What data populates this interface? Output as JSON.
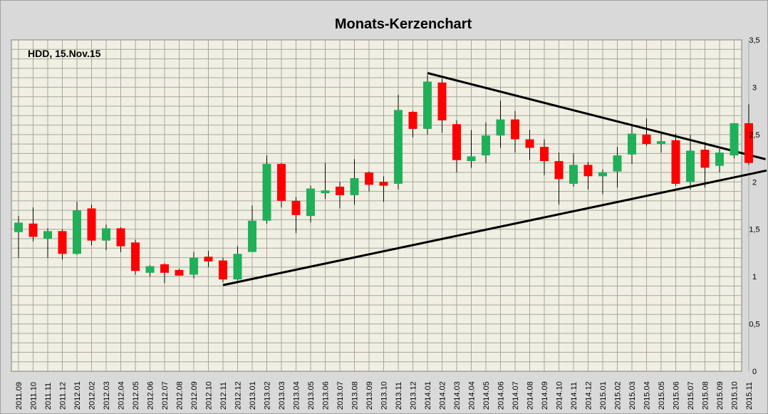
{
  "chart_data": {
    "type": "candlestick",
    "title": "Monats-Kerzenchart",
    "subtitle": "HDD, 15.Nov.15",
    "ylim": [
      0,
      3.5
    ],
    "y_ticks": [
      "0",
      "0,5",
      "1",
      "1,5",
      "2",
      "2,5",
      "3",
      "3,5"
    ],
    "grid": true,
    "up_color": "#21b05a",
    "down_color": "#ff0000",
    "plot_background": "#f0efe2",
    "frame_background": "#d9d9d9",
    "categories": [
      "2011.09",
      "2011.10",
      "2011.11",
      "2011.12",
      "2012.01",
      "2012.02",
      "2012.03",
      "2012.04",
      "2012.05",
      "2012.06",
      "2012.07",
      "2012.08",
      "2012.09",
      "2012.10",
      "2012.11",
      "2012.12",
      "2013.01",
      "2013.02",
      "2013.03",
      "2013.04",
      "2013.05",
      "2013.06",
      "2013.07",
      "2013.08",
      "2013.09",
      "2013.10",
      "2013.11",
      "2013.12",
      "2014.01",
      "2014.02",
      "2014.03",
      "2014.04",
      "2014.05",
      "2014.06",
      "2014.07",
      "2014.08",
      "2014.09",
      "2014.10",
      "2014.11",
      "2014.12",
      "2015.01",
      "2015.02",
      "2015.03",
      "2015.04",
      "2015.05",
      "2015.06",
      "2015.07",
      "2015.08",
      "2015.09",
      "2015.10",
      "2015.11"
    ],
    "candles": [
      {
        "o": 1.47,
        "h": 1.64,
        "l": 1.2,
        "c": 1.57
      },
      {
        "o": 1.56,
        "h": 1.73,
        "l": 1.37,
        "c": 1.42
      },
      {
        "o": 1.4,
        "h": 1.51,
        "l": 1.2,
        "c": 1.48
      },
      {
        "o": 1.48,
        "h": 1.5,
        "l": 1.18,
        "c": 1.24
      },
      {
        "o": 1.24,
        "h": 1.79,
        "l": 1.23,
        "c": 1.7
      },
      {
        "o": 1.72,
        "h": 1.76,
        "l": 1.33,
        "c": 1.38
      },
      {
        "o": 1.38,
        "h": 1.55,
        "l": 1.28,
        "c": 1.51
      },
      {
        "o": 1.51,
        "h": 1.52,
        "l": 1.26,
        "c": 1.32
      },
      {
        "o": 1.36,
        "h": 1.39,
        "l": 1.02,
        "c": 1.06
      },
      {
        "o": 1.04,
        "h": 1.12,
        "l": 1.0,
        "c": 1.11
      },
      {
        "o": 1.13,
        "h": 1.14,
        "l": 0.93,
        "c": 1.04
      },
      {
        "o": 1.07,
        "h": 1.08,
        "l": 1.01,
        "c": 1.01
      },
      {
        "o": 1.02,
        "h": 1.26,
        "l": 0.98,
        "c": 1.2
      },
      {
        "o": 1.21,
        "h": 1.27,
        "l": 1.1,
        "c": 1.16
      },
      {
        "o": 1.17,
        "h": 1.2,
        "l": 0.94,
        "c": 0.97
      },
      {
        "o": 0.97,
        "h": 1.32,
        "l": 0.96,
        "c": 1.24
      },
      {
        "o": 1.26,
        "h": 1.75,
        "l": 1.26,
        "c": 1.59
      },
      {
        "o": 1.59,
        "h": 2.28,
        "l": 1.56,
        "c": 2.19
      },
      {
        "o": 2.19,
        "h": 2.2,
        "l": 1.73,
        "c": 1.8
      },
      {
        "o": 1.8,
        "h": 1.84,
        "l": 1.46,
        "c": 1.65
      },
      {
        "o": 1.64,
        "h": 1.96,
        "l": 1.57,
        "c": 1.93
      },
      {
        "o": 1.88,
        "h": 2.2,
        "l": 1.82,
        "c": 1.91
      },
      {
        "o": 1.95,
        "h": 2.0,
        "l": 1.72,
        "c": 1.86
      },
      {
        "o": 1.86,
        "h": 2.24,
        "l": 1.76,
        "c": 2.04
      },
      {
        "o": 2.1,
        "h": 2.11,
        "l": 1.9,
        "c": 1.97
      },
      {
        "o": 2.0,
        "h": 2.06,
        "l": 1.79,
        "c": 1.96
      },
      {
        "o": 1.98,
        "h": 2.92,
        "l": 1.92,
        "c": 2.76
      },
      {
        "o": 2.74,
        "h": 2.75,
        "l": 2.47,
        "c": 2.56
      },
      {
        "o": 2.56,
        "h": 3.13,
        "l": 2.5,
        "c": 3.06
      },
      {
        "o": 3.05,
        "h": 3.09,
        "l": 2.52,
        "c": 2.65
      },
      {
        "o": 2.61,
        "h": 2.65,
        "l": 2.1,
        "c": 2.23
      },
      {
        "o": 2.22,
        "h": 2.55,
        "l": 2.15,
        "c": 2.27
      },
      {
        "o": 2.28,
        "h": 2.63,
        "l": 2.2,
        "c": 2.49
      },
      {
        "o": 2.49,
        "h": 2.86,
        "l": 2.36,
        "c": 2.66
      },
      {
        "o": 2.66,
        "h": 2.75,
        "l": 2.31,
        "c": 2.45
      },
      {
        "o": 2.45,
        "h": 2.55,
        "l": 2.23,
        "c": 2.36
      },
      {
        "o": 2.37,
        "h": 2.45,
        "l": 2.07,
        "c": 2.22
      },
      {
        "o": 2.22,
        "h": 2.31,
        "l": 1.76,
        "c": 2.03
      },
      {
        "o": 1.98,
        "h": 2.3,
        "l": 1.95,
        "c": 2.18
      },
      {
        "o": 2.18,
        "h": 2.21,
        "l": 1.92,
        "c": 2.06
      },
      {
        "o": 2.06,
        "h": 2.13,
        "l": 1.87,
        "c": 2.1
      },
      {
        "o": 2.11,
        "h": 2.37,
        "l": 1.94,
        "c": 2.28
      },
      {
        "o": 2.29,
        "h": 2.6,
        "l": 2.19,
        "c": 2.51
      },
      {
        "o": 2.5,
        "h": 2.67,
        "l": 2.38,
        "c": 2.4
      },
      {
        "o": 2.4,
        "h": 2.53,
        "l": 2.31,
        "c": 2.43
      },
      {
        "o": 2.44,
        "h": 2.51,
        "l": 1.96,
        "c": 1.98
      },
      {
        "o": 2.0,
        "h": 2.5,
        "l": 1.92,
        "c": 2.33
      },
      {
        "o": 2.34,
        "h": 2.42,
        "l": 1.94,
        "c": 2.15
      },
      {
        "o": 2.17,
        "h": 2.35,
        "l": 2.1,
        "c": 2.31
      },
      {
        "o": 2.28,
        "h": 2.62,
        "l": 2.25,
        "c": 2.62
      },
      {
        "o": 2.62,
        "h": 2.82,
        "l": 2.18,
        "c": 2.2
      }
    ],
    "trendlines": [
      {
        "x1": "2014.01",
        "y1": 3.15,
        "x2_index": 51.15,
        "y2": 2.24
      },
      {
        "x1": "2012.11",
        "y1": 0.91,
        "x2_index": 51.7,
        "y2": 2.12
      }
    ]
  }
}
